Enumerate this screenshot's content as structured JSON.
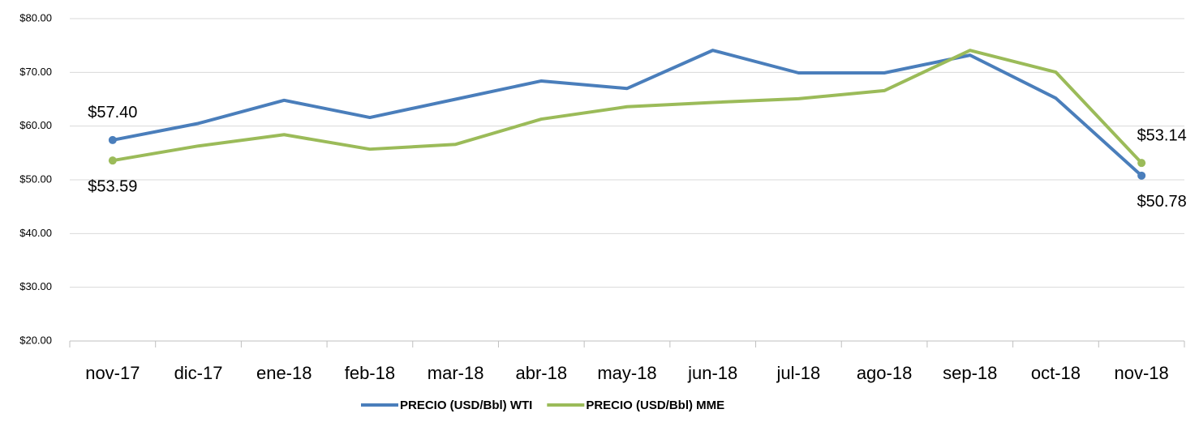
{
  "chart_data": {
    "type": "line",
    "categories": [
      "nov-17",
      "dic-17",
      "ene-18",
      "feb-18",
      "mar-18",
      "abr-18",
      "may-18",
      "jun-18",
      "jul-18",
      "ago-18",
      "sep-18",
      "oct-18",
      "nov-18"
    ],
    "series": [
      {
        "name": "PRECIO (USD/Bbl) WTI",
        "color": "#4a7ebb",
        "values": [
          57.4,
          60.5,
          64.8,
          61.6,
          65.0,
          68.4,
          67.0,
          74.1,
          69.9,
          69.9,
          73.2,
          65.2,
          50.78
        ],
        "value_labels": [
          "$57.40",
          null,
          null,
          null,
          null,
          null,
          null,
          null,
          null,
          null,
          null,
          null,
          "$50.78"
        ]
      },
      {
        "name": "PRECIO (USD/Bbl) MME",
        "color": "#9bbb59",
        "values": [
          53.59,
          56.3,
          58.4,
          55.7,
          56.6,
          61.3,
          63.6,
          64.4,
          65.1,
          66.6,
          74.1,
          70.05,
          53.14
        ],
        "value_labels": [
          "$53.59",
          null,
          null,
          null,
          null,
          null,
          null,
          null,
          null,
          null,
          null,
          null,
          "$53.14"
        ]
      }
    ],
    "ylim": [
      20,
      80
    ],
    "yticks": [
      {
        "value": 20,
        "label": "$20.00"
      },
      {
        "value": 30,
        "label": "$30.00"
      },
      {
        "value": 40,
        "label": "$40.00"
      },
      {
        "value": 50,
        "label": "$50.00"
      },
      {
        "value": 60,
        "label": "$60.00"
      },
      {
        "value": 70,
        "label": "$70.00"
      },
      {
        "value": 80,
        "label": "$80.00"
      }
    ],
    "grid": true,
    "legend": "bottom"
  }
}
